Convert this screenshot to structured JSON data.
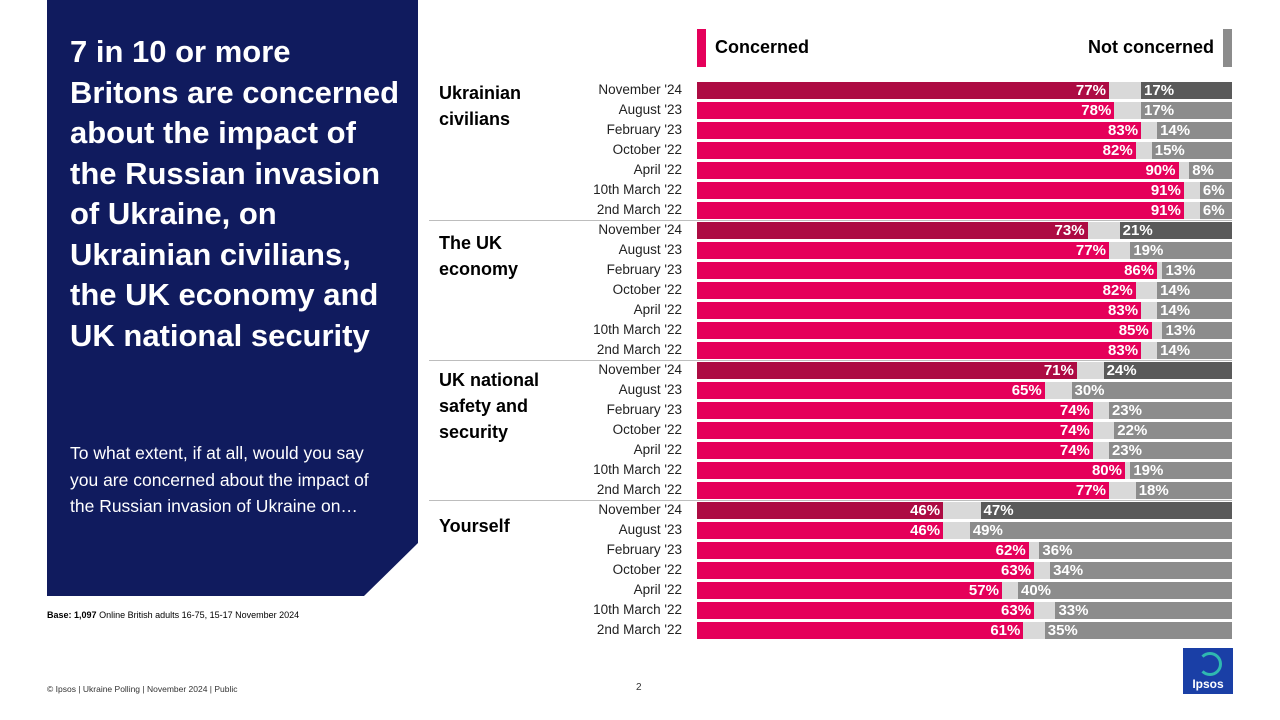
{
  "headline": "7 in 10 or more Britons are concerned about the impact of the Russian invasion of Ukraine, on Ukrainian civilians, the UK economy and UK national security",
  "question": "To what extent, if at all, would you say you are concerned about the impact of the Russian invasion of Ukraine on…",
  "base": {
    "label": "Base:",
    "value": "1,097",
    "text": "Online British adults 16-75, 15-17 November 2024"
  },
  "footer": {
    "copyright": "© Ipsos | Ukraine Polling | November 2024 | Public",
    "page": "2"
  },
  "logo": {
    "text": "Ipsos"
  },
  "colors": {
    "concerned": "#e5005a",
    "concerned_latest": "#ad0b43",
    "neutral": "#d9d9d9",
    "not_concerned": "#8c8c8c",
    "not_concerned_latest": "#5a5a5a",
    "panel": "#101b5e"
  },
  "chart_data": {
    "type": "bar",
    "orientation": "horizontal-stacked",
    "unit": "%",
    "legend": {
      "concerned": "Concerned",
      "not_concerned": "Not concerned"
    },
    "periods": [
      "November '24",
      "August '23",
      "February '23",
      "October '22",
      "April '22",
      "10th March '22",
      "2nd March '22"
    ],
    "groups": [
      {
        "label": "Ukrainian civilians",
        "concerned": [
          77,
          78,
          83,
          82,
          90,
          91,
          91
        ],
        "not_concerned": [
          17,
          17,
          14,
          15,
          8,
          6,
          6
        ]
      },
      {
        "label": "The UK economy",
        "concerned": [
          73,
          77,
          86,
          82,
          83,
          85,
          83
        ],
        "not_concerned": [
          21,
          19,
          13,
          14,
          14,
          13,
          14
        ]
      },
      {
        "label": "UK national safety and security",
        "concerned": [
          71,
          65,
          74,
          74,
          74,
          80,
          77
        ],
        "not_concerned": [
          24,
          30,
          23,
          22,
          23,
          19,
          18
        ]
      },
      {
        "label": "Yourself",
        "concerned": [
          46,
          46,
          62,
          63,
          57,
          63,
          61
        ],
        "not_concerned": [
          47,
          49,
          36,
          34,
          40,
          33,
          35
        ]
      }
    ]
  }
}
